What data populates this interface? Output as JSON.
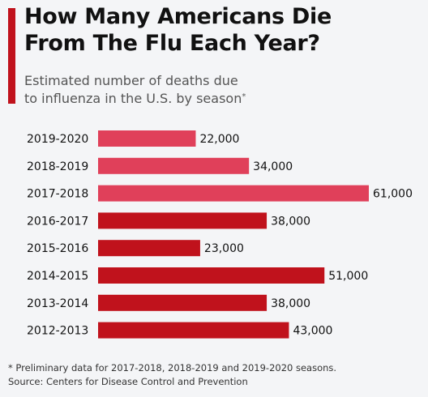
{
  "title_line1": "How Many Americans Die",
  "title_line2": "From The Flu Each Year?",
  "subtitle_line1": "Estimated number of deaths due",
  "subtitle_line2": "to influenza in the U.S. by season",
  "subtitle_marker": "*",
  "footnote": "* Preliminary data for 2017-2018, 2018-2019 and 2019-2020 seasons.",
  "source": "Source: Centers for Disease Control and Prevention",
  "colors": {
    "preliminary": "#e0405a",
    "final": "#c0121c",
    "accent": "#c0121c"
  },
  "chart_data": {
    "type": "bar",
    "orientation": "horizontal",
    "categories": [
      "2019-2020",
      "2018-2019",
      "2017-2018",
      "2016-2017",
      "2015-2016",
      "2014-2015",
      "2013-2014",
      "2012-2013"
    ],
    "values": [
      22000,
      34000,
      61000,
      38000,
      23000,
      51000,
      38000,
      43000
    ],
    "value_labels": [
      "22,000",
      "34,000",
      "61,000",
      "38,000",
      "23,000",
      "51,000",
      "38,000",
      "43,000"
    ],
    "preliminary": [
      true,
      true,
      true,
      false,
      false,
      false,
      false,
      false
    ],
    "xlim": [
      0,
      61000
    ],
    "grid": false,
    "legend": "none"
  }
}
